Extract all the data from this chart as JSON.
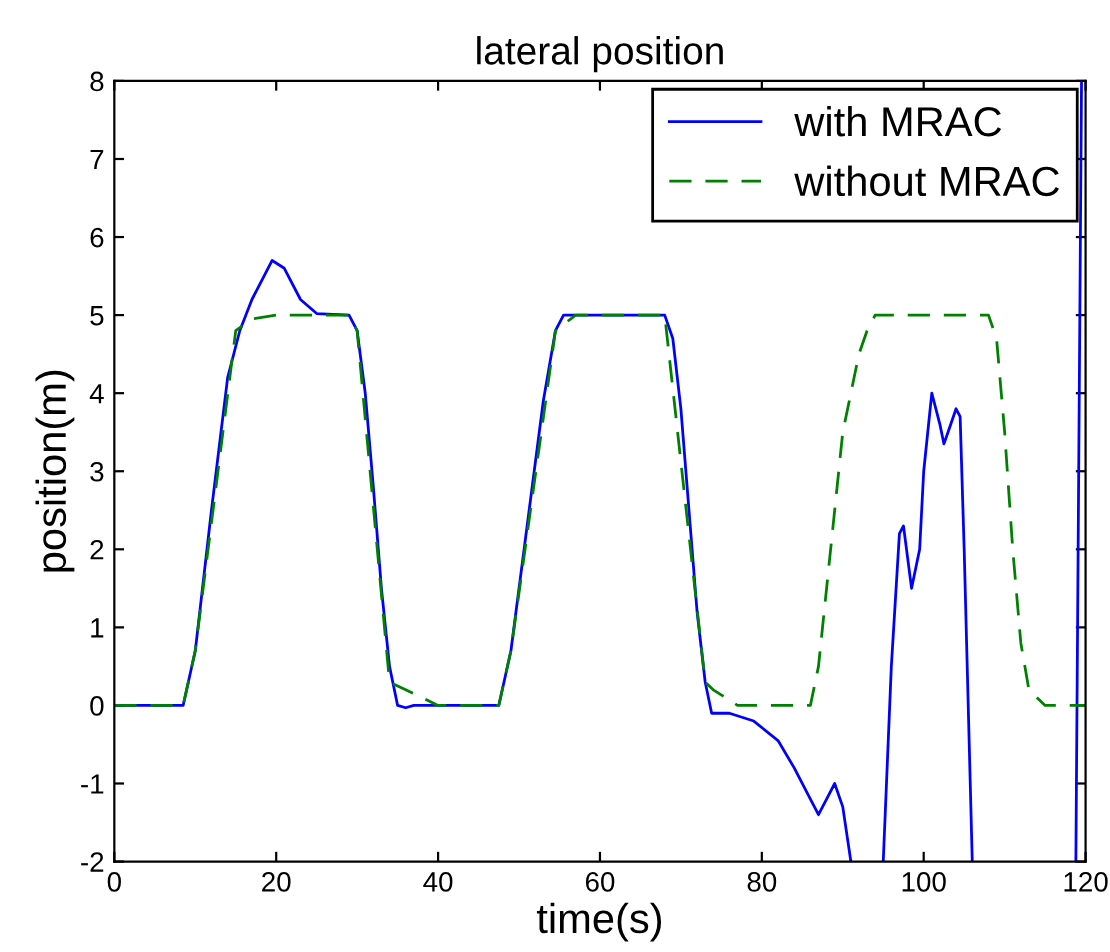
{
  "chart_data": {
    "type": "line",
    "title": "lateral position",
    "xlabel": "time(s)",
    "ylabel": "position(m)",
    "xlim": [
      0,
      120
    ],
    "xticks": [
      0,
      20,
      40,
      60,
      80,
      100,
      120
    ],
    "ylim": [
      -2,
      8
    ],
    "yticks": [
      -2,
      -1,
      0,
      1,
      2,
      3,
      4,
      5,
      6,
      7,
      8
    ],
    "grid": false,
    "legend": "top right",
    "marker": "none",
    "series": [
      {
        "name": "with MRAC",
        "color": "#0000ff",
        "line_style": "solid",
        "x": [
          0,
          8.5,
          10,
          12,
          14,
          15.5,
          17,
          19.5,
          21,
          23,
          25,
          29,
          30,
          31,
          32,
          33,
          34,
          35,
          36,
          37,
          47.5,
          49,
          51,
          53,
          54.5,
          55.5,
          68,
          69,
          70,
          71,
          72,
          73,
          73.8,
          76,
          79,
          82,
          84,
          86,
          87,
          88,
          89,
          90,
          91,
          93,
          95,
          96,
          97,
          97.5,
          98.5,
          99.5,
          100,
          101,
          102,
          102.5,
          103,
          104,
          104.5,
          105,
          106,
          112,
          118.8,
          119.5
        ],
        "values": [
          0,
          0,
          0.7,
          2.5,
          4.2,
          4.8,
          5.2,
          5.7,
          5.6,
          5.2,
          5.02,
          5,
          4.8,
          4,
          2.8,
          1.5,
          0.5,
          0,
          -0.03,
          0,
          0,
          0.7,
          2.3,
          3.9,
          4.8,
          5,
          5,
          4.7,
          3.8,
          2.5,
          1.2,
          0.3,
          -0.1,
          -0.1,
          -0.2,
          -0.45,
          -0.8,
          -1.2,
          -1.4,
          -1.2,
          -1.0,
          -1.3,
          -2,
          null,
          -2,
          0.5,
          2.2,
          2.3,
          1.5,
          2,
          3,
          4,
          3.6,
          3.35,
          3.5,
          3.8,
          3.7,
          2,
          -2,
          null,
          -2,
          8
        ]
      },
      {
        "name": "without MRAC",
        "color": "#008000",
        "line_style": "dashed",
        "x": [
          0,
          8.5,
          10,
          15,
          17,
          20,
          29,
          30,
          34,
          36,
          38,
          40,
          47.5,
          49,
          54.5,
          57,
          68,
          73,
          74,
          77,
          86,
          87,
          88.5,
          90,
          92,
          93,
          94,
          108,
          109,
          110,
          111,
          112,
          113,
          115,
          120
        ],
        "values": [
          0,
          0,
          0.7,
          4.8,
          4.95,
          5,
          5,
          4.8,
          0.3,
          0.2,
          0.1,
          0,
          0,
          0.7,
          4.8,
          5,
          5,
          0.3,
          0.2,
          0,
          0,
          0.5,
          2,
          3.5,
          4.5,
          4.8,
          5,
          5,
          4.7,
          3.5,
          2,
          0.8,
          0.2,
          0,
          0
        ]
      }
    ]
  }
}
